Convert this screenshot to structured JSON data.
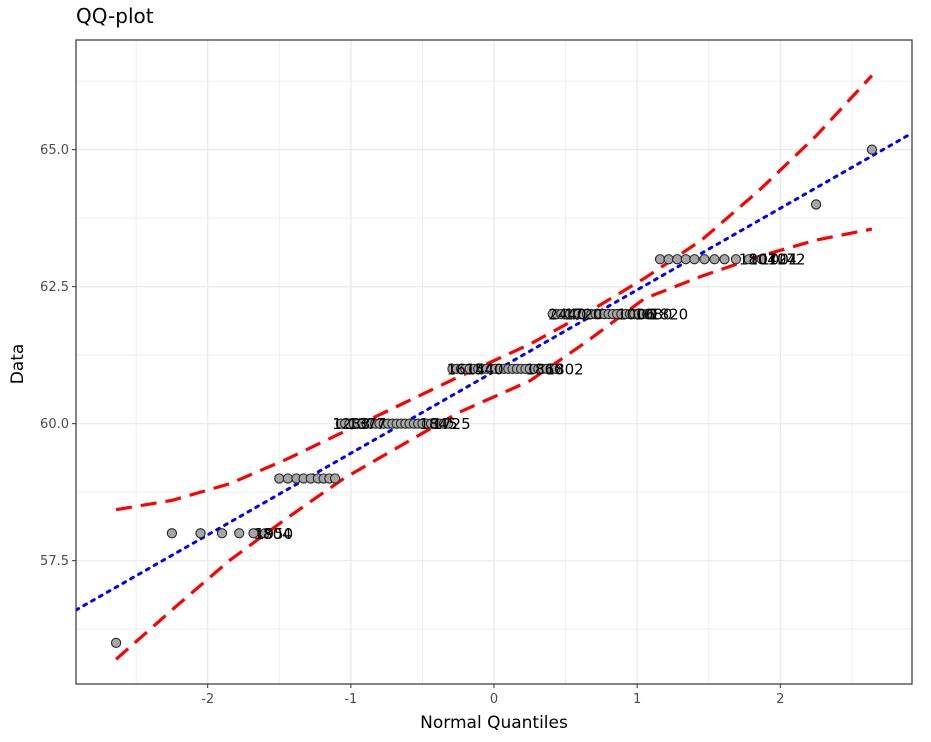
{
  "chart_data": {
    "type": "scatter",
    "title": "QQ-plot",
    "xlabel": "Normal Quantiles",
    "ylabel": "Data",
    "xlim": [
      -2.92,
      2.92
    ],
    "ylim": [
      55.25,
      67.0
    ],
    "x_ticks": [
      -2,
      -1,
      0,
      1,
      2
    ],
    "y_ticks": [
      57.5,
      60.0,
      62.5,
      65.0
    ],
    "x_tick_labels": [
      "-2",
      "-1",
      "0",
      "1",
      "2"
    ],
    "y_tick_labels": [
      "57.5",
      "60.0",
      "62.5",
      "65.0"
    ],
    "grid": true,
    "points": [
      {
        "y": 56,
        "x": [
          -2.64
        ]
      },
      {
        "y": 58,
        "x": [
          -2.25,
          -2.05,
          -1.9,
          -1.78,
          -1.68,
          -1.6
        ]
      },
      {
        "y": 59,
        "x": [
          -1.5,
          -1.44,
          -1.38,
          -1.33,
          -1.28,
          -1.23,
          -1.19,
          -1.15,
          -1.11
        ]
      },
      {
        "y": 60,
        "x": [
          -1.07,
          -1.04,
          -1.01,
          -0.98,
          -0.95,
          -0.92,
          -0.89,
          -0.86,
          -0.83,
          -0.8,
          -0.77,
          -0.74,
          -0.71,
          -0.68,
          -0.65,
          -0.62,
          -0.59,
          -0.56,
          -0.53,
          -0.5,
          -0.47,
          -0.44,
          -0.41,
          -0.38,
          -0.35,
          -0.32
        ]
      },
      {
        "y": 61,
        "x": [
          -0.29,
          -0.26,
          -0.23,
          -0.2,
          -0.17,
          -0.14,
          -0.11,
          -0.08,
          -0.05,
          -0.02,
          0.01,
          0.04,
          0.07,
          0.1,
          0.13,
          0.16,
          0.19,
          0.22,
          0.25,
          0.28,
          0.31,
          0.34,
          0.37,
          0.4,
          0.43
        ]
      },
      {
        "y": 62,
        "x": [
          0.41,
          0.44,
          0.47,
          0.5,
          0.53,
          0.56,
          0.59,
          0.62,
          0.65,
          0.68,
          0.71,
          0.74,
          0.77,
          0.8,
          0.83,
          0.86,
          0.89,
          0.92,
          0.95,
          0.98,
          1.01,
          1.04,
          1.07,
          1.1
        ]
      },
      {
        "y": 63,
        "x": [
          1.16,
          1.22,
          1.28,
          1.34,
          1.4,
          1.47,
          1.54,
          1.61,
          1.69,
          1.78,
          1.87
        ]
      },
      {
        "y": 64,
        "x": [
          2.25
        ]
      },
      {
        "y": 65,
        "x": [
          2.64
        ]
      }
    ],
    "point_labels": [
      {
        "text": "1804",
        "x": -1.68,
        "y": 58
      },
      {
        "text": "1950",
        "x": -1.67,
        "y": 58
      },
      {
        "text": "1233",
        "x": -1.13,
        "y": 60
      },
      {
        "text": "1377",
        "x": -1.02,
        "y": 60
      },
      {
        "text": "1845",
        "x": -0.52,
        "y": 60
      },
      {
        "text": "1725",
        "x": -0.43,
        "y": 60
      },
      {
        "text": "1614",
        "x": -0.33,
        "y": 61
      },
      {
        "text": "1540",
        "x": -0.2,
        "y": 61
      },
      {
        "text": "1860",
        "x": 0.22,
        "y": 61
      },
      {
        "text": "1802",
        "x": 0.36,
        "y": 61
      },
      {
        "text": "2440",
        "x": 0.38,
        "y": 62
      },
      {
        "text": "1720",
        "x": 0.49,
        "y": 62
      },
      {
        "text": "1006",
        "x": 0.86,
        "y": 62
      },
      {
        "text": "1080",
        "x": 0.98,
        "y": 62
      },
      {
        "text": "1820",
        "x": 1.09,
        "y": 62
      },
      {
        "text": "1804",
        "x": 1.71,
        "y": 63
      },
      {
        "text": "10724",
        "x": 1.78,
        "y": 63
      },
      {
        "text": "1001",
        "x": 1.86,
        "y": 63
      },
      {
        "text": "1072",
        "x": 1.91,
        "y": 63
      }
    ],
    "reference_line": {
      "intercept": 60.95,
      "slope": 1.49,
      "style": "dotted",
      "color": "#0000ff"
    },
    "confidence_band": {
      "style": "dashed",
      "color": "#ff0000",
      "upper": [
        [
          -2.64,
          58.43
        ],
        [
          -2.25,
          58.6
        ],
        [
          -1.85,
          58.9
        ],
        [
          -1.45,
          59.35
        ],
        [
          -1.05,
          59.85
        ],
        [
          -0.65,
          60.35
        ],
        [
          -0.25,
          60.85
        ],
        [
          0.25,
          61.45
        ],
        [
          0.65,
          62.02
        ],
        [
          1.05,
          62.65
        ],
        [
          1.45,
          63.35
        ],
        [
          1.85,
          64.25
        ],
        [
          2.25,
          65.25
        ],
        [
          2.64,
          66.35
        ]
      ],
      "lower": [
        [
          -2.64,
          55.7
        ],
        [
          -2.25,
          56.6
        ],
        [
          -1.85,
          57.5
        ],
        [
          -1.45,
          58.27
        ],
        [
          -1.05,
          59.0
        ],
        [
          -0.65,
          59.6
        ],
        [
          -0.25,
          60.2
        ],
        [
          0.25,
          60.78
        ],
        [
          0.65,
          61.5
        ],
        [
          1.05,
          62.28
        ],
        [
          1.45,
          62.69
        ],
        [
          1.85,
          63.05
        ],
        [
          2.25,
          63.35
        ],
        [
          2.64,
          63.55
        ]
      ]
    },
    "colors": {
      "point_fill": "#a6a6a6",
      "point_stroke": "#262626",
      "grid": "#ebebeb",
      "panel_border": "#333333"
    }
  }
}
